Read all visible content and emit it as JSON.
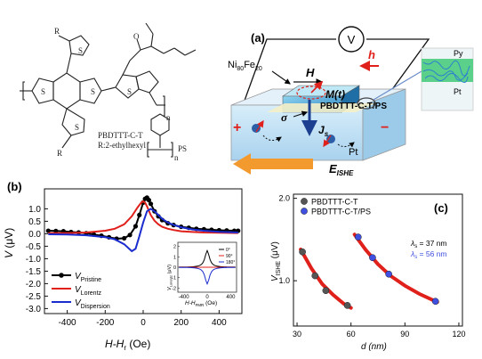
{
  "molecule": {
    "r_labels": [
      "R",
      "R",
      "R"
    ],
    "polymer_name": "PBDTTT-C-T",
    "r_definition": "R:2-ethylhexyl",
    "ps_label": "PS",
    "n_labels": [
      "n",
      "n"
    ],
    "atoms": [
      "S",
      "S",
      "S",
      "S",
      "S",
      "O"
    ]
  },
  "panel_a": {
    "label": "(a)",
    "voltmeter": "V",
    "ferromagnet": "Ni",
    "ferromagnet_sub1": "80",
    "ferromagnet_fe": "Fe",
    "ferromagnet_sub2": "20",
    "field_H": "H",
    "field_h": "h",
    "magnetization": "M(t)",
    "sigma": "σ",
    "spin_current": "J",
    "spin_current_sub": "s",
    "film": "PBDTTT-C-T/PS",
    "pt_label": "Pt",
    "plus": "+",
    "minus": "−",
    "e_ishe": "E",
    "e_ishe_sub": "ISHE",
    "inset_top": "Py",
    "inset_bottom": "Pt",
    "colors": {
      "film": "#bfe0f4",
      "py": "#2f8fcf",
      "arrow": "#f39a2e",
      "red": "#e0201b"
    }
  },
  "panel_b": {
    "label": "(b)",
    "chart_data": {
      "type": "line",
      "xlabel": "H-H",
      "xlabel_sub": "r",
      "xlabel_unit": "(Oe)",
      "ylabel": "V",
      "ylabel_unit": "(μV)",
      "xlim": [
        -520,
        520
      ],
      "ylim": [
        -3.2,
        1.8
      ],
      "xticks": [
        "-400",
        "-200",
        "0",
        "200",
        "400"
      ],
      "yticks": [
        "1.0",
        "0.5",
        "0.0",
        "-0.5",
        "-1.0",
        "-1.5",
        "-2.0",
        "-2.5",
        "-3.0"
      ],
      "legend": [
        {
          "name": "V",
          "sub": "Pristine",
          "color": "#000000"
        },
        {
          "name": "V",
          "sub": "Lorentz",
          "color": "#e0201b"
        },
        {
          "name": "V",
          "sub": "Dispersion",
          "color": "#1b2ccf"
        }
      ],
      "series": [
        {
          "name": "V_Pristine",
          "color": "#000000",
          "marker": true,
          "x": [
            -500,
            -460,
            -420,
            -380,
            -340,
            -300,
            -260,
            -220,
            -180,
            -140,
            -100,
            -70,
            -40,
            -20,
            0,
            10,
            20,
            30,
            40,
            60,
            80,
            100,
            130,
            160,
            200,
            240,
            280,
            320,
            360,
            400,
            440,
            480,
            500
          ],
          "y": [
            0.12,
            0.11,
            0.1,
            0.07,
            0.05,
            0.02,
            -0.03,
            -0.08,
            -0.14,
            -0.2,
            -0.18,
            -0.05,
            0.3,
            0.75,
            1.25,
            1.4,
            1.45,
            1.35,
            1.2,
            0.9,
            0.7,
            0.55,
            0.42,
            0.35,
            0.28,
            0.24,
            0.2,
            0.18,
            0.16,
            0.14,
            0.13,
            0.12,
            0.12
          ]
        },
        {
          "name": "V_Lorentz",
          "color": "#e0201b",
          "marker": false,
          "x": [
            -500,
            -400,
            -300,
            -200,
            -150,
            -100,
            -60,
            -30,
            -10,
            0,
            10,
            20,
            30,
            40,
            60,
            80,
            100,
            130,
            160,
            200,
            260,
            320,
            400,
            500
          ],
          "y": [
            0.02,
            0.03,
            0.05,
            0.12,
            0.2,
            0.38,
            0.7,
            1.05,
            1.25,
            1.3,
            1.25,
            1.1,
            0.92,
            0.75,
            0.52,
            0.38,
            0.28,
            0.2,
            0.15,
            0.1,
            0.07,
            0.05,
            0.04,
            0.03
          ]
        },
        {
          "name": "V_Dispersion",
          "color": "#1b2ccf",
          "marker": false,
          "x": [
            -500,
            -400,
            -300,
            -200,
            -150,
            -100,
            -60,
            -40,
            -20,
            0,
            20,
            40,
            60,
            80,
            100,
            130,
            160,
            200,
            260,
            320,
            400,
            500
          ],
          "y": [
            -0.02,
            -0.03,
            -0.06,
            -0.14,
            -0.22,
            -0.42,
            -0.7,
            -0.6,
            -0.1,
            0.45,
            0.9,
            1.0,
            0.9,
            0.75,
            0.6,
            0.45,
            0.35,
            0.26,
            0.17,
            0.12,
            0.08,
            0.05
          ]
        }
      ]
    },
    "inset": {
      "ylabel": "V",
      "ylabel_sub": "Lorentz",
      "ylabel_unit": "(μV)",
      "xlabel": "H-H",
      "xlabel_sub": "FMR",
      "xlabel_unit": "(Oe)",
      "xticks": [
        "-400",
        "0",
        "400"
      ],
      "yticks": [
        "2",
        "1",
        "0",
        "-1",
        "-2"
      ],
      "legend": [
        {
          "label": "0°",
          "color": "#000000"
        },
        {
          "label": "90°",
          "color": "#e0201b"
        },
        {
          "label": "180°",
          "color": "#1b2ccf"
        }
      ]
    }
  },
  "panel_c": {
    "label": "(c)",
    "chart_data": {
      "type": "scatter",
      "xlabel": "d (nm)",
      "ylabel": "V",
      "ylabel_sub": "ISHE",
      "ylabel_unit": "(μV)",
      "xlim": [
        28,
        122
      ],
      "ylim": [
        0.45,
        2.05
      ],
      "xticks": [
        "30",
        "60",
        "90",
        "120"
      ],
      "yticks": [
        "2.0",
        "1.0"
      ],
      "legend": [
        {
          "name": "PBDTTT-C-T",
          "color": "#555555"
        },
        {
          "name": "PBDTTT-C-T/PS",
          "color": "#3f4fe0"
        }
      ],
      "series": [
        {
          "name": "PBDTTT-C-T",
          "color": "#555555",
          "x": [
            33,
            40,
            46,
            58
          ],
          "y": [
            1.35,
            1.06,
            0.88,
            0.7
          ]
        },
        {
          "name": "PBDTTT-C-T/PS",
          "color": "#3f4fe0",
          "x": [
            64,
            72,
            81,
            107
          ],
          "y": [
            1.53,
            1.28,
            1.08,
            0.75
          ]
        }
      ],
      "fits": [
        {
          "color": "#e0201b",
          "x": [
            32,
            38,
            44,
            50,
            56,
            60
          ],
          "y": [
            1.38,
            1.15,
            0.96,
            0.83,
            0.72,
            0.67
          ]
        },
        {
          "color": "#e0201b",
          "x": [
            62,
            68,
            75,
            82,
            90,
            98,
            106,
            108
          ],
          "y": [
            1.56,
            1.38,
            1.2,
            1.06,
            0.94,
            0.84,
            0.76,
            0.74
          ]
        }
      ],
      "annotations": [
        {
          "symbol": "λ",
          "sub": "s",
          "text": " = 37 nm",
          "color": "#000000"
        },
        {
          "symbol": "λ",
          "sub": "s",
          "text": " = 56 nm",
          "color": "#3f4fe0"
        }
      ]
    }
  }
}
